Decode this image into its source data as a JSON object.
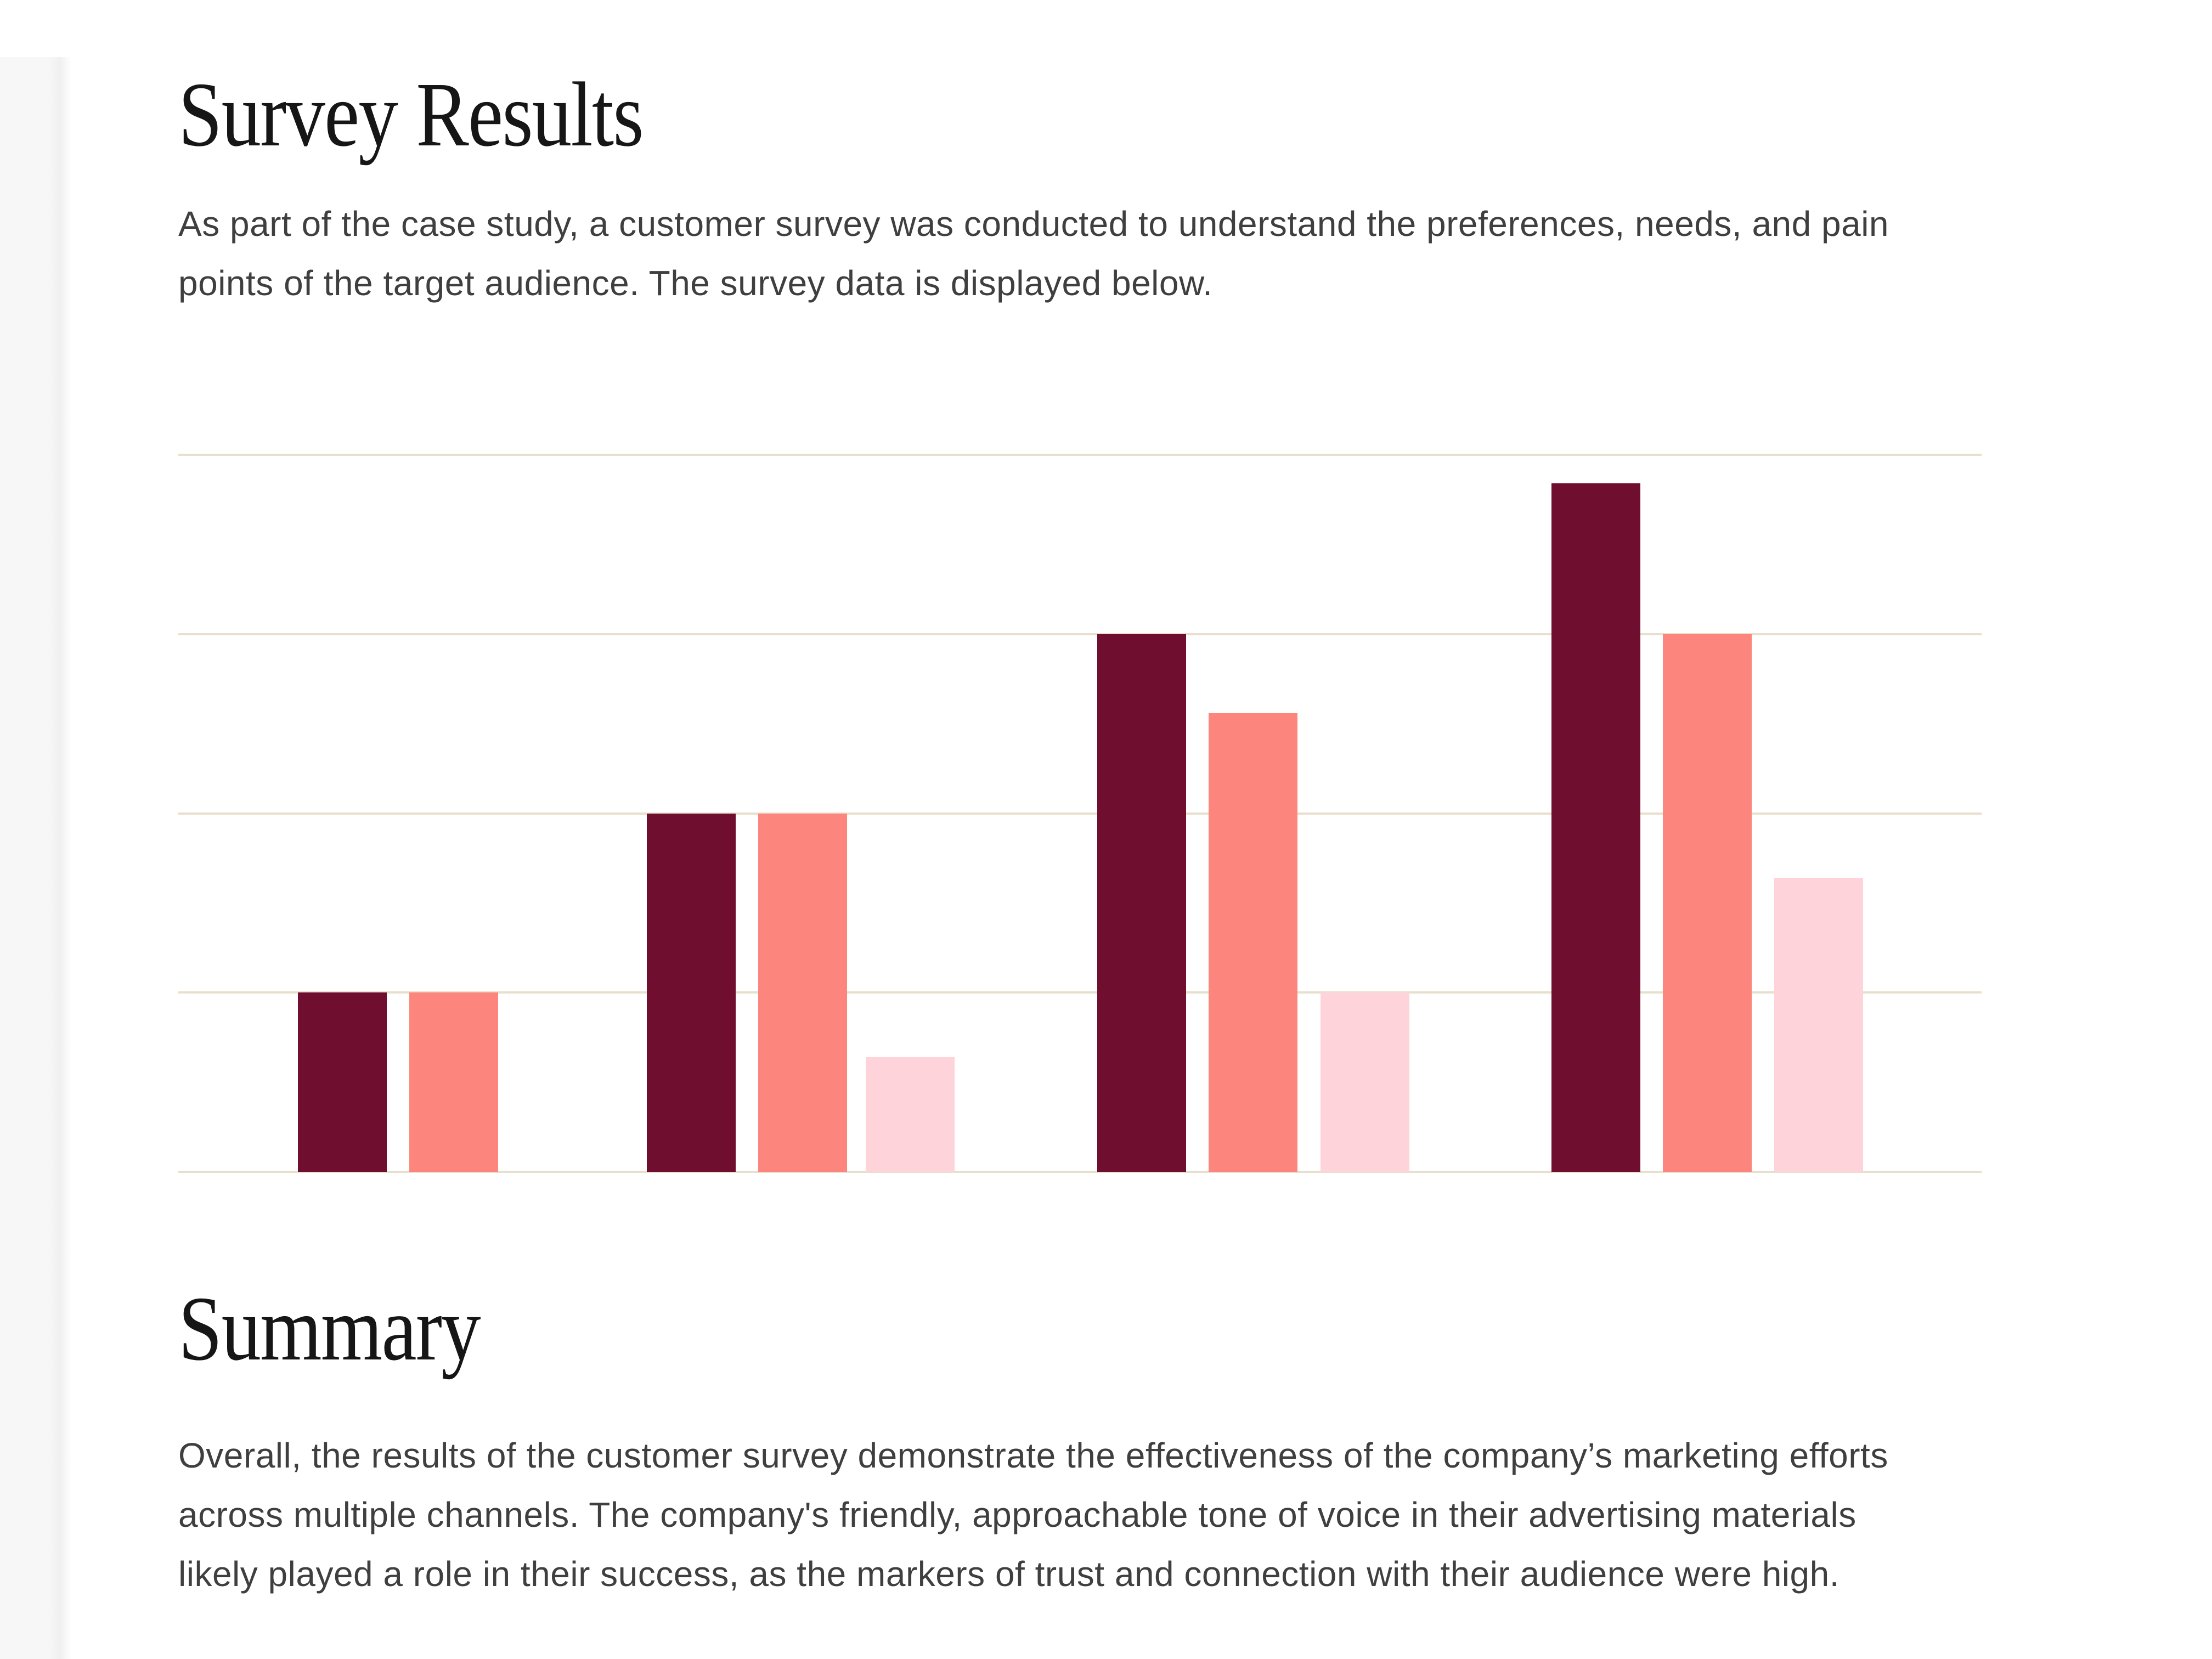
{
  "page": {
    "survey_section": {
      "heading": "Survey Results",
      "body": "As part of the case study, a customer survey was conducted to understand the preferences, needs, and pain\npoints of the target audience. The survey data is displayed below."
    },
    "summary_section": {
      "heading": "Summary",
      "body": "Overall, the results of the customer survey demonstrate the effectiveness of the company’s marketing efforts\nacross multiple channels. The company's friendly, approachable tone of voice in their advertising materials\nlikely played a role in their success, as the markers of trust and connection with their audience were high."
    }
  },
  "chart_data": {
    "type": "bar",
    "title": "",
    "categories": [
      "",
      "",
      "",
      ""
    ],
    "series": [
      {
        "name": "series-1-dark-maroon",
        "color": "#6f0e2e",
        "values": [
          25,
          50,
          75,
          96
        ]
      },
      {
        "name": "series-2-salmon",
        "color": "#fc867d",
        "values": [
          25,
          50,
          64,
          75
        ]
      },
      {
        "name": "series-3-light-pink",
        "color": "#ffd3da",
        "values": [
          null,
          16,
          25,
          41
        ]
      }
    ],
    "ylim": [
      0,
      100
    ],
    "y_gridlines": [
      0,
      25,
      50,
      75,
      100
    ],
    "grid_color": "#e8dfcd",
    "legend": "none",
    "axis_tick_labels": "none",
    "grid": "horizontal-only"
  },
  "theme": {
    "background": "#ffffff",
    "left_gutter": "#f7f7f8",
    "heading_color": "#161616",
    "body_color": "#3f3f3f"
  }
}
